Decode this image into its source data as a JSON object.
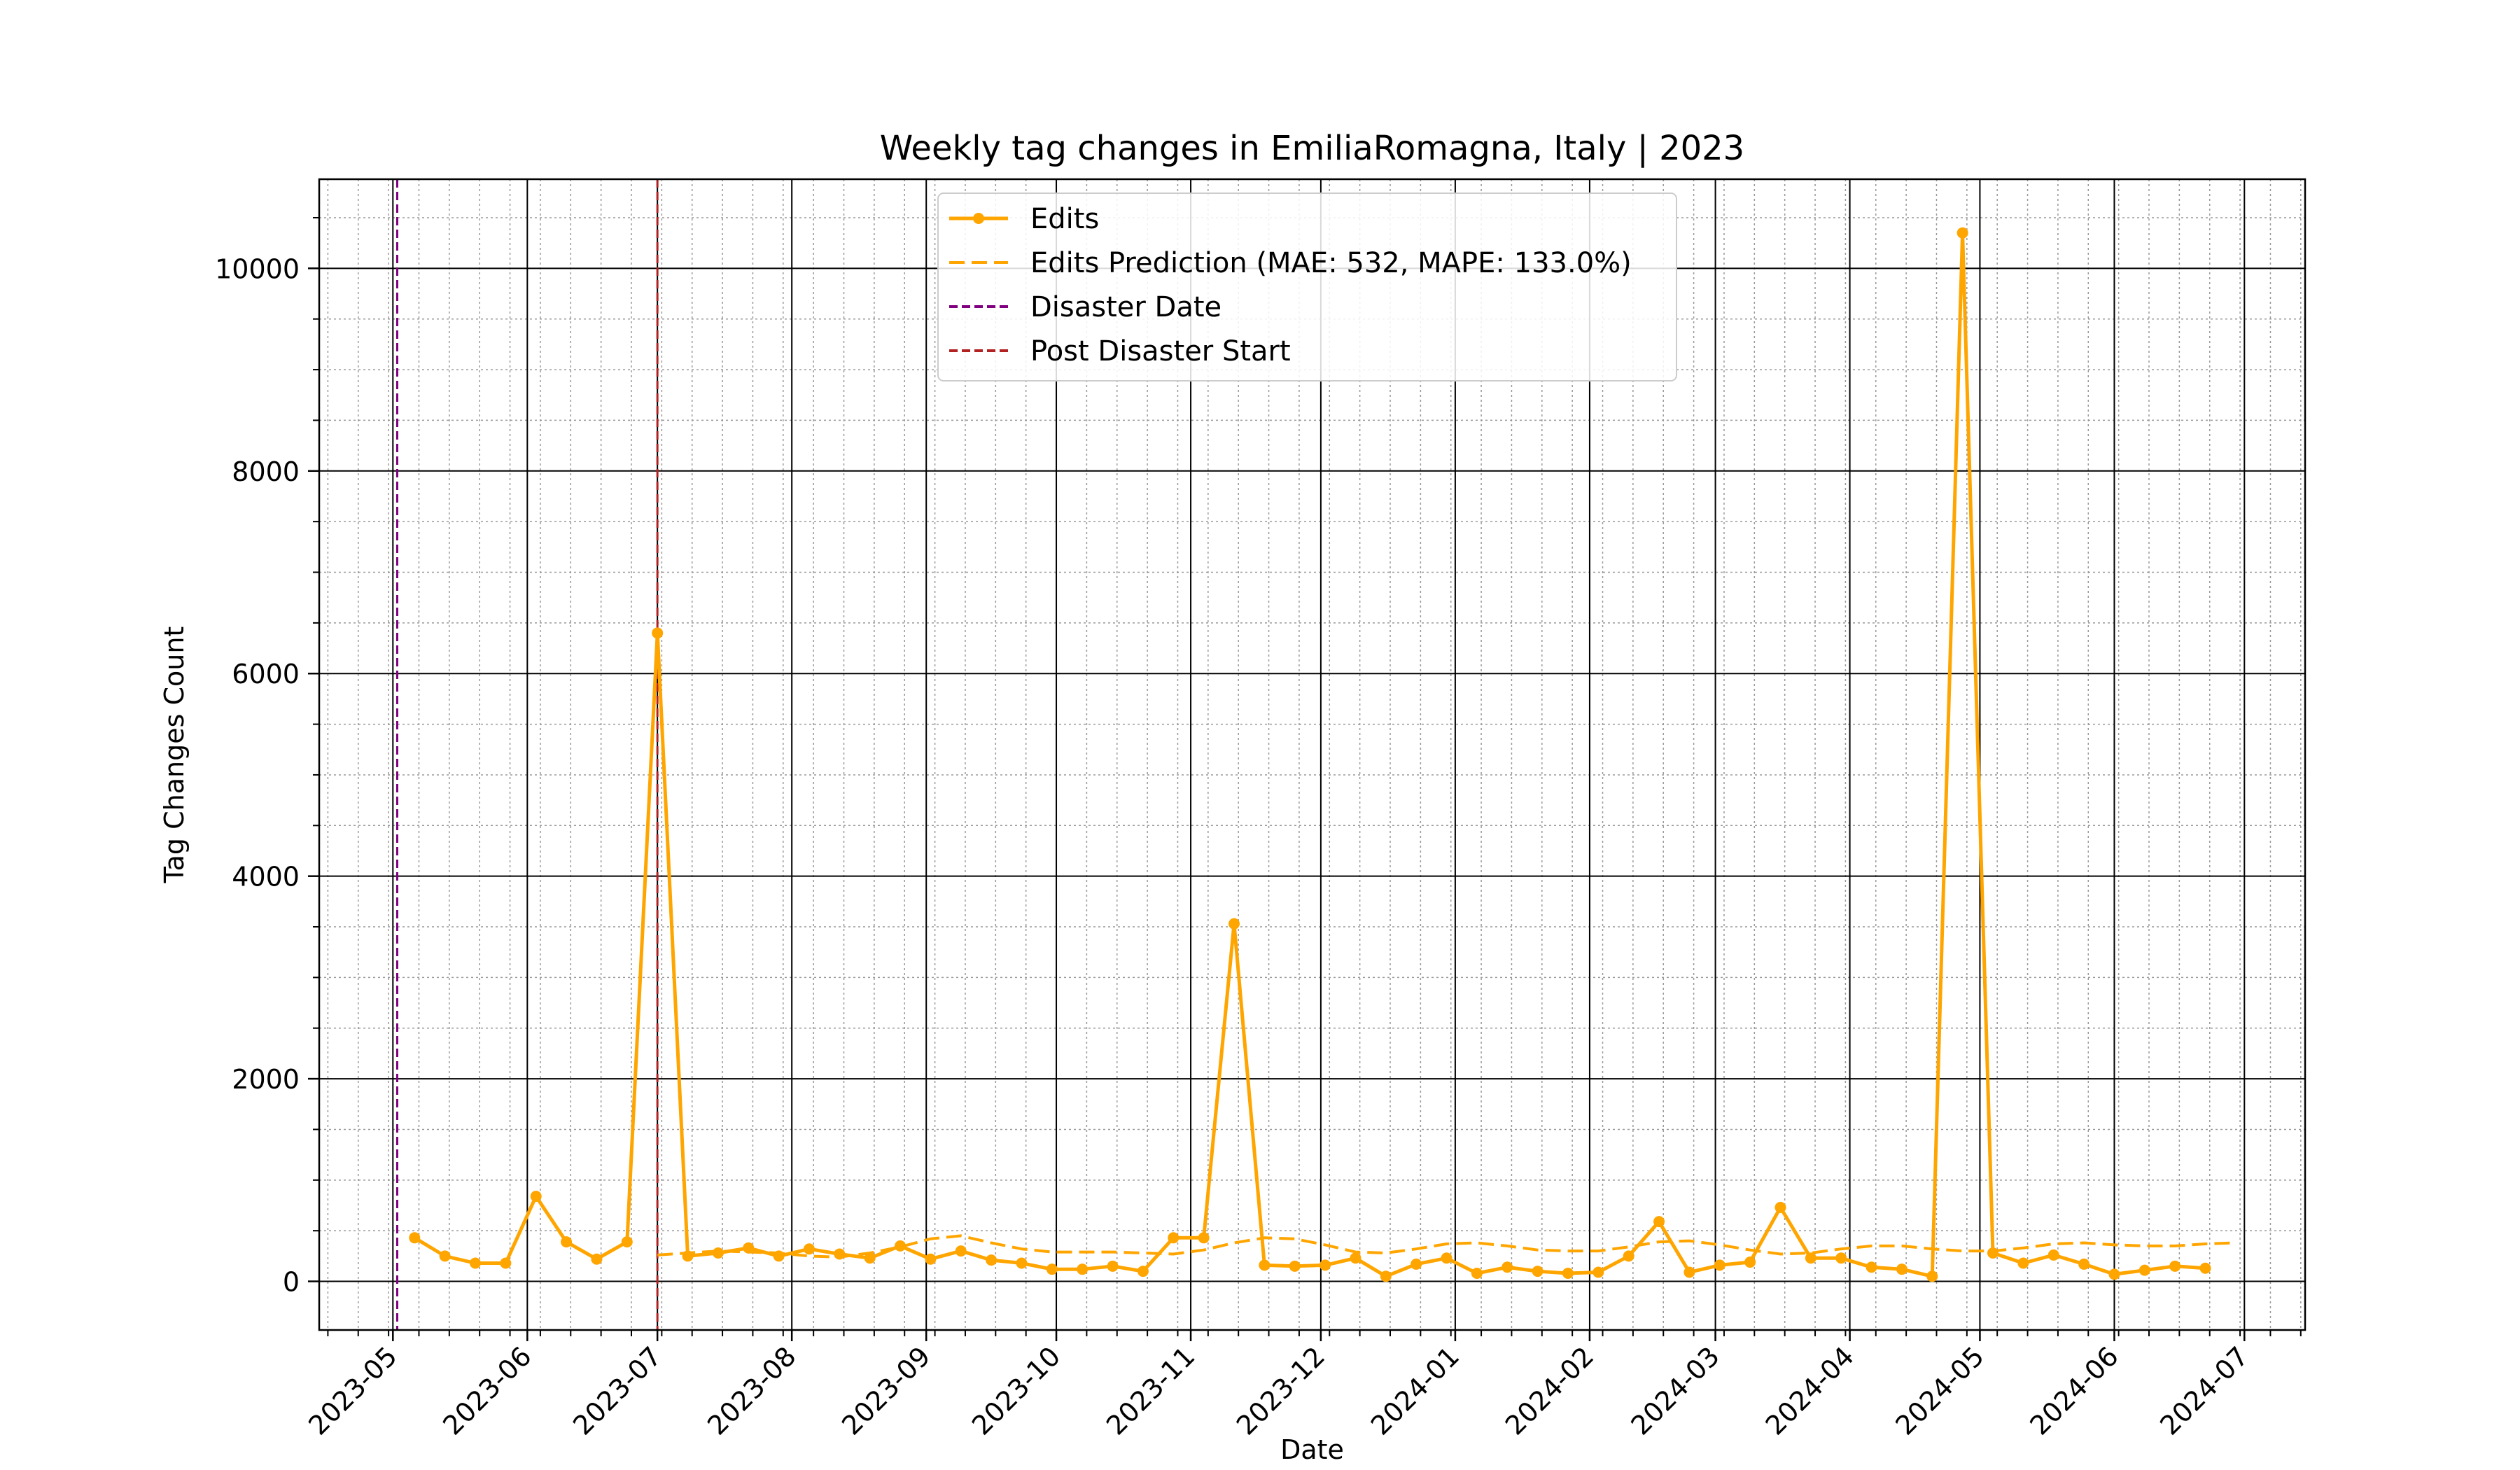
{
  "chart_data": {
    "type": "line",
    "title": "Weekly tag changes in EmiliaRomagna, Italy | 2023",
    "xlabel": "Date",
    "ylabel": "Tag Changes Count",
    "x_type": "date",
    "xlim": [
      "2023-04-14",
      "2024-07-15"
    ],
    "ylim": [
      -480,
      10880
    ],
    "grid": true,
    "legend_position": "top-center",
    "x_ticks": [
      "2023-05-01",
      "2023-06-01",
      "2023-07-01",
      "2023-08-01",
      "2023-09-01",
      "2023-10-01",
      "2023-11-01",
      "2023-12-01",
      "2024-01-01",
      "2024-02-01",
      "2024-03-01",
      "2024-04-01",
      "2024-05-01",
      "2024-06-01",
      "2024-07-01"
    ],
    "x_tick_labels": [
      "2023-05",
      "2023-06",
      "2023-07",
      "2023-08",
      "2023-09",
      "2023-10",
      "2023-11",
      "2023-12",
      "2024-01",
      "2024-02",
      "2024-03",
      "2024-04",
      "2024-05",
      "2024-06",
      "2024-07"
    ],
    "y_ticks": [
      0,
      2000,
      4000,
      6000,
      8000,
      10000
    ],
    "y_tick_labels": [
      "0",
      "2000",
      "4000",
      "6000",
      "8000",
      "10000"
    ],
    "colors": {
      "edits": "#FFA500",
      "prediction": "#FFA500",
      "disaster": "#800080",
      "post_disaster": "#B22222",
      "grid_major": "#000000",
      "grid_minor": "#999999"
    },
    "series": [
      {
        "name": "Edits",
        "style": "solid-with-markers",
        "x": [
          "2023-05-06",
          "2023-05-13",
          "2023-05-20",
          "2023-05-27",
          "2023-06-03",
          "2023-06-10",
          "2023-06-17",
          "2023-06-24",
          "2023-07-01",
          "2023-07-08",
          "2023-07-15",
          "2023-07-22",
          "2023-07-29",
          "2023-08-05",
          "2023-08-12",
          "2023-08-19",
          "2023-08-26",
          "2023-09-02",
          "2023-09-09",
          "2023-09-16",
          "2023-09-23",
          "2023-09-30",
          "2023-10-07",
          "2023-10-14",
          "2023-10-21",
          "2023-10-28",
          "2023-11-04",
          "2023-11-11",
          "2023-11-18",
          "2023-11-25",
          "2023-12-02",
          "2023-12-09",
          "2023-12-16",
          "2023-12-23",
          "2023-12-30",
          "2024-01-06",
          "2024-01-13",
          "2024-01-20",
          "2024-01-27",
          "2024-02-03",
          "2024-02-10",
          "2024-02-17",
          "2024-02-24",
          "2024-03-02",
          "2024-03-09",
          "2024-03-16",
          "2024-03-23",
          "2024-03-30",
          "2024-04-06",
          "2024-04-13",
          "2024-04-20",
          "2024-04-27",
          "2024-05-04",
          "2024-05-11",
          "2024-05-18",
          "2024-05-25",
          "2024-06-01",
          "2024-06-08",
          "2024-06-15",
          "2024-06-22"
        ],
        "y": [
          430,
          250,
          180,
          180,
          840,
          390,
          220,
          390,
          6400,
          250,
          280,
          330,
          250,
          320,
          270,
          230,
          350,
          220,
          300,
          210,
          180,
          120,
          120,
          150,
          100,
          430,
          430,
          3530,
          160,
          150,
          160,
          230,
          50,
          170,
          230,
          80,
          140,
          100,
          80,
          90,
          250,
          590,
          90,
          160,
          190,
          730,
          230,
          230,
          140,
          120,
          50,
          10350,
          280,
          180,
          260,
          170,
          70,
          110,
          150,
          130
        ]
      },
      {
        "name": "Edits Prediction (MAE: 532, MAPE: 133.0%)",
        "style": "dashed",
        "x": [
          "2023-07-01",
          "2023-07-08",
          "2023-07-15",
          "2023-07-22",
          "2023-07-29",
          "2023-08-05",
          "2023-08-12",
          "2023-08-19",
          "2023-08-26",
          "2023-09-02",
          "2023-09-09",
          "2023-09-16",
          "2023-09-23",
          "2023-09-30",
          "2023-10-07",
          "2023-10-14",
          "2023-10-21",
          "2023-10-28",
          "2023-11-04",
          "2023-11-11",
          "2023-11-18",
          "2023-11-25",
          "2023-12-02",
          "2023-12-09",
          "2023-12-16",
          "2023-12-23",
          "2023-12-30",
          "2024-01-06",
          "2024-01-13",
          "2024-01-20",
          "2024-01-27",
          "2024-02-03",
          "2024-02-10",
          "2024-02-17",
          "2024-02-24",
          "2024-03-02",
          "2024-03-09",
          "2024-03-16",
          "2024-03-23",
          "2024-03-30",
          "2024-04-06",
          "2024-04-13",
          "2024-04-20",
          "2024-04-27",
          "2024-05-04",
          "2024-05-11",
          "2024-05-18",
          "2024-05-25",
          "2024-06-01",
          "2024-06-08",
          "2024-06-15",
          "2024-06-22",
          "2024-06-29"
        ],
        "y": [
          260,
          280,
          300,
          290,
          280,
          250,
          240,
          280,
          340,
          420,
          450,
          380,
          320,
          290,
          290,
          290,
          280,
          270,
          310,
          380,
          430,
          420,
          360,
          290,
          280,
          320,
          370,
          380,
          350,
          310,
          300,
          300,
          340,
          390,
          400,
          360,
          310,
          270,
          280,
          320,
          350,
          350,
          320,
          300,
          300,
          330,
          370,
          380,
          360,
          350,
          350,
          370,
          380
        ]
      }
    ],
    "vlines": [
      {
        "name": "Disaster Date",
        "x": "2023-05-02",
        "style": "dashed"
      },
      {
        "name": "Post Disaster Start",
        "x": "2023-07-01",
        "style": "dashed"
      }
    ]
  }
}
